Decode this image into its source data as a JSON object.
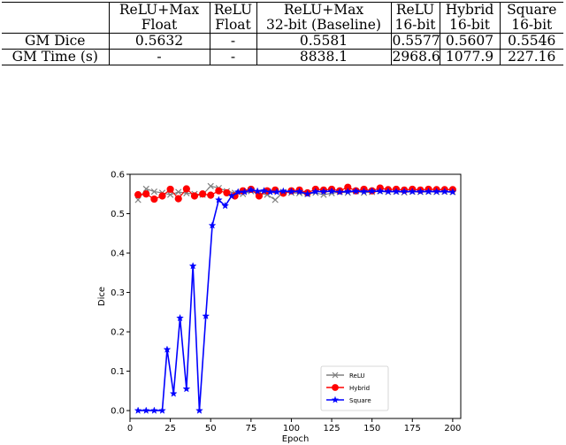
{
  "table": {
    "header": [
      [
        "",
        "ReLU+Max",
        "ReLU",
        "ReLU+Max",
        "ReLU",
        "Hybrid",
        "Square"
      ],
      [
        "",
        "Float",
        "Float",
        "32-bit (Baseline)",
        "16-bit",
        "16-bit",
        "16-bit"
      ]
    ],
    "rows": [
      [
        "GM Dice",
        "0.5632",
        "-",
        "0.5581",
        "0.5577",
        "0.5607",
        "0.5546"
      ],
      [
        "GM Time (s)",
        "-",
        "-",
        "8838.1",
        "2968.6",
        "1077.9",
        "227.16"
      ]
    ]
  },
  "chart_data": {
    "type": "line",
    "xlabel": "Epoch",
    "ylabel": "Dice",
    "xlim": [
      0,
      205
    ],
    "ylim": [
      -0.02,
      0.6
    ],
    "xticks": [
      0,
      25,
      50,
      75,
      100,
      125,
      150,
      175,
      200
    ],
    "yticks": [
      0.0,
      0.1,
      0.2,
      0.3,
      0.4,
      0.5,
      0.6
    ],
    "legend_position": "lower-right",
    "series": [
      {
        "name": "ReLU",
        "color": "#808080",
        "marker": "x",
        "x": [
          5,
          10,
          15,
          20,
          25,
          30,
          35,
          40,
          45,
          50,
          55,
          60,
          65,
          70,
          75,
          80,
          85,
          90,
          95,
          100,
          105,
          110,
          115,
          120,
          125,
          130,
          135,
          140,
          145,
          150,
          155,
          160,
          165,
          170,
          175,
          180,
          185,
          190,
          195,
          200
        ],
        "y": [
          0.535,
          0.563,
          0.556,
          0.553,
          0.548,
          0.555,
          0.552,
          0.55,
          0.548,
          0.57,
          0.565,
          0.557,
          0.553,
          0.55,
          0.557,
          0.552,
          0.548,
          0.535,
          0.555,
          0.553,
          0.552,
          0.55,
          0.553,
          0.548,
          0.552,
          0.555,
          0.553,
          0.557,
          0.553,
          0.555,
          0.557,
          0.555,
          0.556,
          0.554,
          0.556,
          0.555,
          0.556,
          0.555,
          0.556,
          0.555
        ]
      },
      {
        "name": "Hybrid",
        "color": "#ff0000",
        "marker": "o",
        "x": [
          5,
          10,
          15,
          20,
          25,
          30,
          35,
          40,
          45,
          50,
          55,
          60,
          65,
          70,
          75,
          80,
          85,
          90,
          95,
          100,
          105,
          110,
          115,
          120,
          125,
          130,
          135,
          140,
          145,
          150,
          155,
          160,
          165,
          170,
          175,
          180,
          185,
          190,
          195,
          200
        ],
        "y": [
          0.548,
          0.55,
          0.537,
          0.545,
          0.562,
          0.538,
          0.563,
          0.545,
          0.55,
          0.547,
          0.558,
          0.553,
          0.545,
          0.558,
          0.562,
          0.545,
          0.558,
          0.56,
          0.552,
          0.558,
          0.56,
          0.553,
          0.562,
          0.56,
          0.562,
          0.558,
          0.567,
          0.558,
          0.562,
          0.558,
          0.565,
          0.561,
          0.562,
          0.56,
          0.562,
          0.56,
          0.562,
          0.561,
          0.561,
          0.561
        ]
      },
      {
        "name": "Square",
        "color": "#0000ff",
        "marker": "*",
        "x": [
          5,
          10,
          15,
          20,
          23,
          27,
          31,
          35,
          39,
          43,
          47,
          51,
          55,
          59,
          63,
          67,
          71,
          75,
          79,
          83,
          87,
          91,
          95,
          100,
          105,
          110,
          115,
          120,
          125,
          130,
          135,
          140,
          145,
          150,
          155,
          160,
          165,
          170,
          175,
          180,
          185,
          190,
          195,
          200
        ],
        "y": [
          0.0,
          0.0,
          0.0,
          0.0,
          0.155,
          0.043,
          0.235,
          0.055,
          0.367,
          0.0,
          0.24,
          0.47,
          0.535,
          0.52,
          0.545,
          0.555,
          0.555,
          0.56,
          0.557,
          0.558,
          0.555,
          0.555,
          0.557,
          0.556,
          0.556,
          0.55,
          0.556,
          0.556,
          0.557,
          0.555,
          0.556,
          0.557,
          0.556,
          0.557,
          0.557,
          0.556,
          0.556,
          0.556,
          0.556,
          0.556,
          0.556,
          0.556,
          0.556,
          0.555
        ]
      }
    ]
  }
}
